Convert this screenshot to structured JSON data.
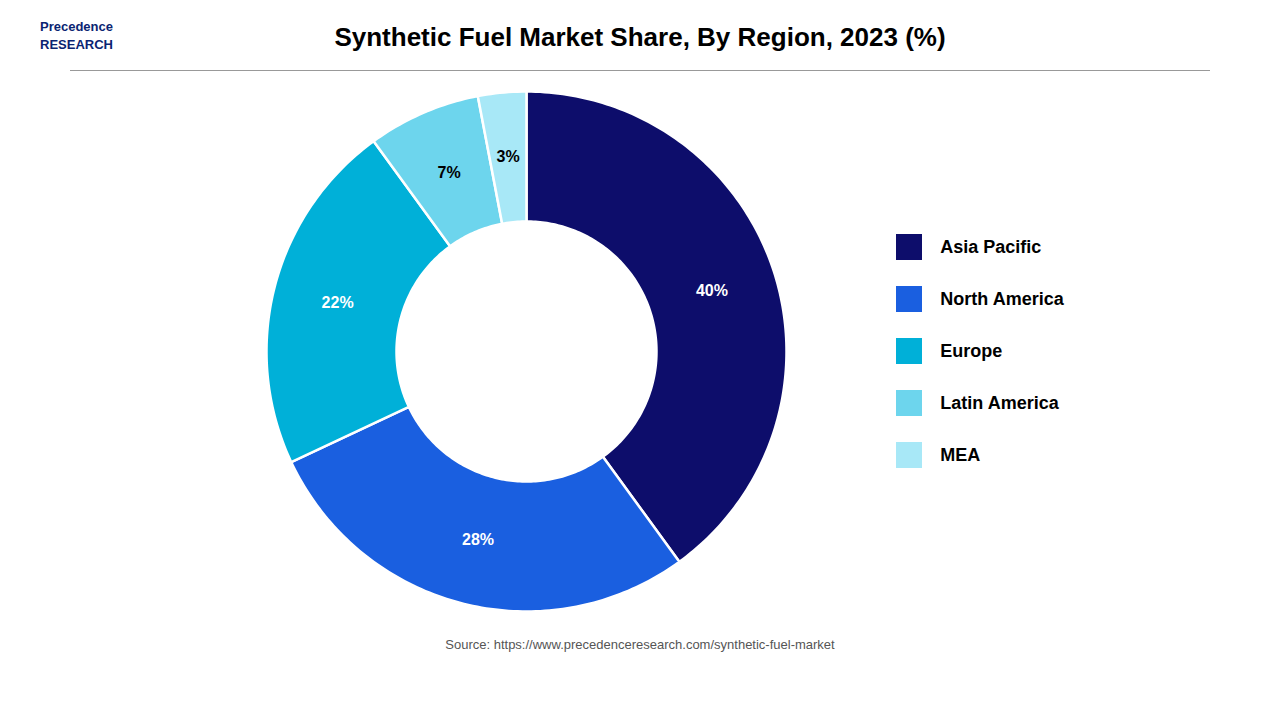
{
  "chart_data": {
    "type": "donut",
    "title": "Synthetic Fuel Market Share, By Region, 2023 (%)",
    "categories": [
      "Asia Pacific",
      "North America",
      "Europe",
      "Latin America",
      "MEA"
    ],
    "values": [
      40,
      28,
      22,
      7,
      3
    ],
    "value_labels": [
      "40%",
      "28%",
      "22%",
      "7%",
      "3%"
    ],
    "colors": [
      "#0d0d6b",
      "#1a5fe0",
      "#00b0d8",
      "#6dd5ed",
      "#a8e8f7"
    ],
    "data_labels": true,
    "legend": "right",
    "annotations": [
      "Precedence\nRESEARCH",
      "Source: https://www.precedenceresearch.com/synthetic-fuel-market"
    ]
  }
}
